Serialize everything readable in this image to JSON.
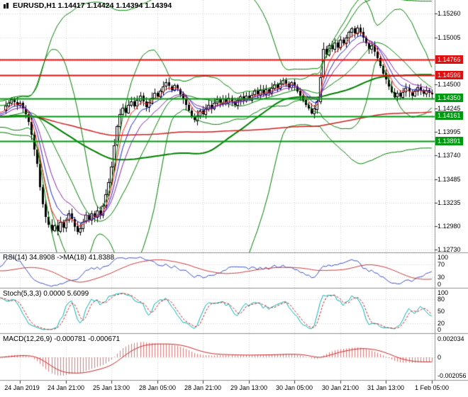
{
  "header": {
    "title": "EURUSD,H1 1.14417 1.14424 1.14394 1.14394"
  },
  "colors": {
    "background": "#ffffff",
    "grid": "#d6d6d6",
    "panel_divider": "#909090",
    "axis_text": "#000000",
    "candle_bear": "#000000",
    "candle_bull": "#ffffff",
    "candle_outline": "#000000",
    "bollinger": "#008000",
    "ma_slow_red": "#d02020",
    "ma_fast_red": "#ff2020",
    "ma_fast_blue": "#2020cc",
    "ma_fast_purple": "#8820a8",
    "resistance": "#dd1111",
    "support": "#009911",
    "rsi_line": "#3c50c8",
    "rsi_ma": "#c83c3c",
    "stoch_k": "#00b4b4",
    "stoch_d": "#cc2222",
    "macd_hist": "#e07878",
    "macd_signal": "#c82828",
    "badge_text": "#ffffff"
  },
  "chart_data": {
    "type": "candlestick",
    "symbol": "EURUSD",
    "timeframe": "H1",
    "ohlc": {
      "open": "1.14417",
      "high": "1.14424",
      "low": "1.14394",
      "close": "1.14394"
    },
    "price_axis": {
      "max": 1.1539,
      "min": 1.127,
      "ticks": [
        "1.15260",
        "1.15005",
        "1.14500",
        "1.14245",
        "1.13995",
        "1.13740",
        "1.13485",
        "1.13235",
        "1.12980",
        "1.12730"
      ],
      "hidden_grid": [
        1.1475
      ]
    },
    "levels": [
      {
        "text": "1.14766",
        "price": 1.14766,
        "type": "resistance"
      },
      {
        "text": "1.14596",
        "price": 1.14596,
        "type": "resistance"
      },
      {
        "text": "1.14350",
        "price": 1.1435,
        "type": "support"
      },
      {
        "text": "1.14161",
        "price": 1.14161,
        "type": "support"
      },
      {
        "text": "1.13891",
        "price": 1.13891,
        "type": "support"
      }
    ],
    "time_labels": [
      "24 Jan 2019",
      "24 Jan 21:00",
      "25 Jan 13:00",
      "28 Jan 05:00",
      "28 Jan 21:00",
      "29 Jan 13:00",
      "30 Jan 05:00",
      "30 Jan 21:00",
      "31 Jan 13:00",
      "1 Feb 05:00"
    ],
    "candles_per_label": 16,
    "closes": [
      1.1427,
      1.143,
      1.1434,
      1.1431,
      1.1428,
      1.143,
      1.1424,
      1.1418,
      1.141,
      1.1396,
      1.138,
      1.1365,
      1.134,
      1.1322,
      1.1308,
      1.13,
      1.1294,
      1.1299,
      1.1293,
      1.1303,
      1.1297,
      1.1305,
      1.1312,
      1.1306,
      1.1298,
      1.1292,
      1.1296,
      1.1303,
      1.131,
      1.1305,
      1.1312,
      1.1308,
      1.1315,
      1.131,
      1.132,
      1.1332,
      1.1345,
      1.1362,
      1.1385,
      1.1405,
      1.1418,
      1.1425,
      1.142,
      1.1428,
      1.1432,
      1.1427,
      1.1433,
      1.1438,
      1.1432,
      1.1426,
      1.1431,
      1.1436,
      1.1441,
      1.1437,
      1.1443,
      1.1448,
      1.1452,
      1.1448,
      1.1444,
      1.1449,
      1.1445,
      1.144,
      1.1435,
      1.1428,
      1.1422,
      1.1416,
      1.1412,
      1.1417,
      1.1422,
      1.1418,
      1.1424,
      1.1428,
      1.1424,
      1.143,
      1.1434,
      1.143,
      1.1435,
      1.1431,
      1.1436,
      1.1432,
      1.1428,
      1.1433,
      1.1437,
      1.1433,
      1.1438,
      1.1434,
      1.1439,
      1.1443,
      1.1439,
      1.1444,
      1.144,
      1.1445,
      1.1441,
      1.1446,
      1.145,
      1.1446,
      1.1451,
      1.1455,
      1.1451,
      1.1447,
      1.1452,
      1.1448,
      1.1443,
      1.1438,
      1.1433,
      1.1428,
      1.1424,
      1.1419,
      1.1424,
      1.1432,
      1.1458,
      1.1488,
      1.1482,
      1.1492,
      1.1488,
      1.1495,
      1.149,
      1.1498,
      1.1494,
      1.15,
      1.1506,
      1.151,
      1.1505,
      1.1511,
      1.1506,
      1.15,
      1.1494,
      1.1488,
      1.1492,
      1.1485,
      1.1478,
      1.147,
      1.1462,
      1.1455,
      1.1448,
      1.1442,
      1.1437,
      1.1441,
      1.1437,
      1.1442,
      1.1446,
      1.1442,
      1.1438,
      1.1443,
      1.1447,
      1.1443,
      1.144,
      1.1444,
      1.1441,
      1.14394
    ],
    "indicators": {
      "rsi": {
        "label": "RSI(14) 34.8908 ->MA(18) 41.8388",
        "period": 14,
        "ma_period": 18,
        "value": "34.8908",
        "ma_value": "41.8388",
        "ticks": [
          {
            "text": "100",
            "v": 100
          },
          {
            "text": "70",
            "v": 70
          },
          {
            "text": "30",
            "v": 30
          },
          {
            "text": "0",
            "v": 0
          }
        ],
        "guide_levels": [
          70,
          30
        ]
      },
      "stoch": {
        "label": "Stoch(5,3,3) 0.0000 5.6099",
        "k_value": "0.0000",
        "d_value": "5.6099",
        "ticks": [
          {
            "text": "100",
            "v": 100
          },
          {
            "text": "80",
            "v": 80
          },
          {
            "text": "50",
            "v": 50
          },
          {
            "text": "20",
            "v": 20
          },
          {
            "text": "0",
            "v": 0
          }
        ],
        "guide_levels": [
          80,
          20
        ]
      },
      "macd": {
        "label": "MACD(12,26,9) -0.000781 -0.000671",
        "macd_value": "-0.000781",
        "signal_value": "-0.000671",
        "ticks": [
          {
            "text": "0.002034",
            "v": 0.002034
          },
          {
            "text": "0",
            "v": 0
          },
          {
            "text": "-0.002056",
            "v": -0.002056
          }
        ]
      }
    }
  }
}
